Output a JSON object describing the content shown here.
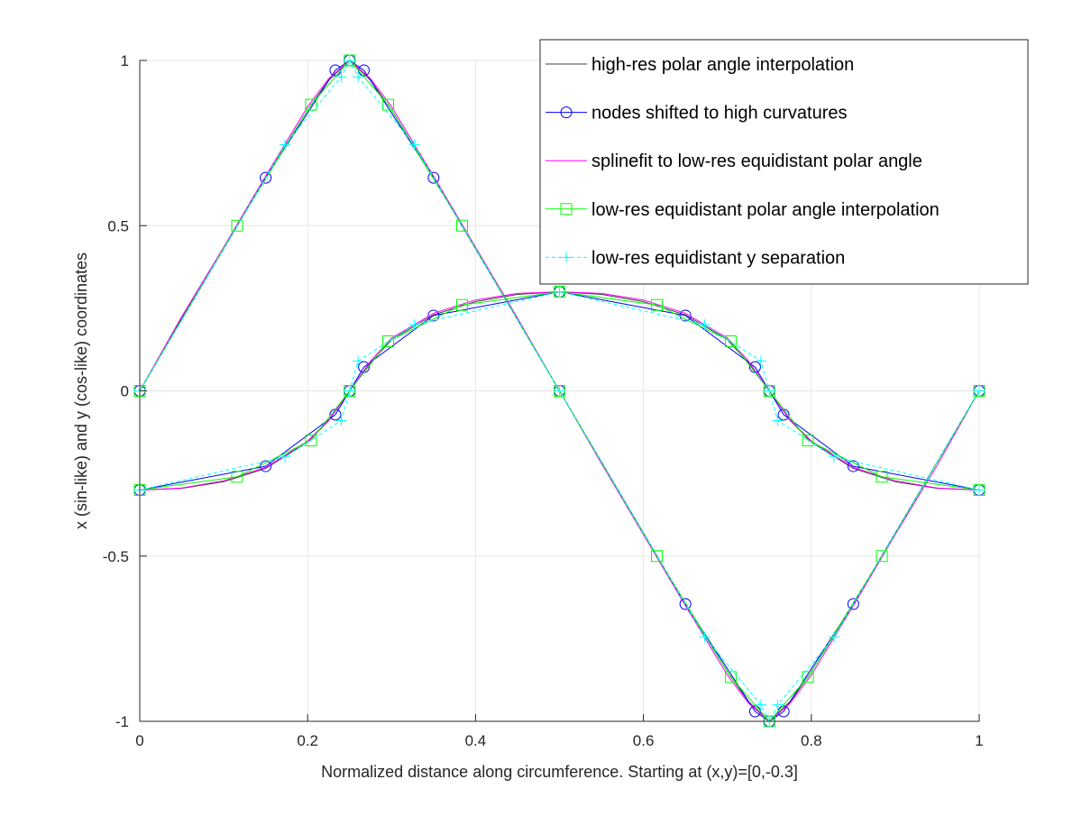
{
  "chart_data": {
    "type": "line",
    "xlabel": "Normalized distance along circumference. Starting at (x,y)=[0,-0.3]",
    "ylabel": "x (sin-like) and y (cos-like) coordinates",
    "xlim": [
      0,
      1
    ],
    "ylim": [
      -1,
      1
    ],
    "xticks": [
      0,
      0.2,
      0.4,
      0.6,
      0.8,
      1
    ],
    "xtick_labels": [
      "0",
      "0.2",
      "0.4",
      "0.6",
      "0.8",
      "1"
    ],
    "yticks": [
      -1,
      -0.5,
      0,
      0.5,
      1
    ],
    "ytick_labels": [
      "-1",
      "-0.5",
      "0",
      "0.5",
      "1"
    ],
    "grid": true,
    "legend_position": "top-right",
    "series": [
      {
        "name": "high-res polar angle interpolation",
        "color": "#404040",
        "marker": "none",
        "line": "solid",
        "groups": [
          {
            "x": [
              0,
              0.05,
              0.1,
              0.15,
              0.2,
              0.225,
              0.25,
              0.275,
              0.3,
              0.35,
              0.4,
              0.45,
              0.5,
              0.55,
              0.6,
              0.65,
              0.7,
              0.725,
              0.75,
              0.775,
              0.8,
              0.85,
              0.9,
              0.95,
              1
            ],
            "y": [
              0,
              0.22,
              0.43,
              0.645,
              0.85,
              0.94,
              1,
              0.94,
              0.85,
              0.645,
              0.43,
              0.215,
              0,
              -0.215,
              -0.43,
              -0.645,
              -0.85,
              -0.94,
              -1,
              -0.94,
              -0.85,
              -0.645,
              -0.43,
              -0.215,
              0
            ]
          },
          {
            "x": [
              0,
              0.05,
              0.1,
              0.15,
              0.2,
              0.225,
              0.25,
              0.275,
              0.3,
              0.35,
              0.4,
              0.45,
              0.5,
              0.55,
              0.6,
              0.65,
              0.7,
              0.725,
              0.75,
              0.775,
              0.8,
              0.85,
              0.9,
              0.95,
              1
            ],
            "y": [
              -0.3,
              -0.295,
              -0.275,
              -0.235,
              -0.155,
              -0.09,
              0,
              0.085,
              0.155,
              0.23,
              0.27,
              0.292,
              0.3,
              0.292,
              0.27,
              0.23,
              0.155,
              0.085,
              0,
              -0.09,
              -0.155,
              -0.235,
              -0.275,
              -0.295,
              -0.3
            ]
          }
        ]
      },
      {
        "name": "nodes shifted to high curvatures",
        "color": "#0000ff",
        "marker": "circle",
        "line": "solid",
        "groups": [
          {
            "x": [
              0,
              0.15,
              0.233,
              0.25,
              0.267,
              0.35,
              0.5,
              0.65,
              0.733,
              0.75,
              0.767,
              0.85,
              1
            ],
            "y": [
              0,
              0.645,
              0.97,
              1,
              0.97,
              0.645,
              0,
              -0.645,
              -0.97,
              -1,
              -0.97,
              -0.645,
              0
            ]
          },
          {
            "x": [
              0,
              0.15,
              0.233,
              0.25,
              0.267,
              0.35,
              0.5,
              0.65,
              0.733,
              0.75,
              0.767,
              0.85,
              1
            ],
            "y": [
              -0.3,
              -0.228,
              -0.072,
              0,
              0.072,
              0.228,
              0.3,
              0.228,
              0.072,
              0,
              -0.072,
              -0.228,
              -0.3
            ]
          }
        ]
      },
      {
        "name": "splinefit to low-res equidistant polar angle",
        "color": "#ff00ff",
        "marker": "none",
        "line": "solid",
        "groups": [
          {
            "x": [
              0,
              0.05,
              0.1,
              0.15,
              0.2,
              0.225,
              0.25,
              0.275,
              0.3,
              0.35,
              0.4,
              0.45,
              0.5,
              0.55,
              0.6,
              0.65,
              0.7,
              0.725,
              0.75,
              0.775,
              0.8,
              0.85,
              0.9,
              0.95,
              1
            ],
            "y": [
              0,
              0.225,
              0.435,
              0.65,
              0.86,
              0.945,
              1,
              0.945,
              0.86,
              0.65,
              0.435,
              0.22,
              0,
              -0.22,
              -0.435,
              -0.65,
              -0.86,
              -0.945,
              -1,
              -0.945,
              -0.86,
              -0.65,
              -0.435,
              -0.225,
              0
            ]
          },
          {
            "x": [
              0,
              0.05,
              0.1,
              0.15,
              0.2,
              0.225,
              0.25,
              0.275,
              0.3,
              0.35,
              0.4,
              0.45,
              0.5,
              0.55,
              0.6,
              0.65,
              0.7,
              0.725,
              0.75,
              0.775,
              0.8,
              0.85,
              0.9,
              0.95,
              1
            ],
            "y": [
              -0.3,
              -0.294,
              -0.272,
              -0.232,
              -0.152,
              -0.088,
              0,
              0.09,
              0.16,
              0.235,
              0.275,
              0.295,
              0.3,
              0.295,
              0.275,
              0.235,
              0.16,
              0.09,
              0,
              -0.088,
              -0.152,
              -0.232,
              -0.272,
              -0.294,
              -0.3
            ]
          }
        ]
      },
      {
        "name": "low-res equidistant polar angle interpolation",
        "color": "#00ff00",
        "marker": "square",
        "line": "solid",
        "groups": [
          {
            "x": [
              0,
              0.116,
              0.204,
              0.25,
              0.296,
              0.384,
              0.5,
              0.616,
              0.704,
              0.75,
              0.796,
              0.884,
              1
            ],
            "y": [
              0,
              0.5,
              0.866,
              1,
              0.866,
              0.5,
              0,
              -0.5,
              -0.866,
              -1,
              -0.866,
              -0.5,
              0
            ]
          },
          {
            "x": [
              0,
              0.116,
              0.204,
              0.25,
              0.296,
              0.384,
              0.5,
              0.616,
              0.704,
              0.75,
              0.796,
              0.884,
              1
            ],
            "y": [
              -0.3,
              -0.26,
              -0.15,
              0,
              0.15,
              0.26,
              0.3,
              0.26,
              0.15,
              0,
              -0.15,
              -0.26,
              -0.3
            ]
          }
        ]
      },
      {
        "name": "low-res equidistant y separation",
        "color": "#00ffff",
        "marker": "plus",
        "line": "dashed",
        "groups": [
          {
            "x": [
              0,
              0.173,
              0.24,
              0.25,
              0.26,
              0.327,
              0.5,
              0.673,
              0.74,
              0.75,
              0.76,
              0.827,
              1
            ],
            "y": [
              0,
              0.745,
              0.95,
              1,
              0.95,
              0.745,
              0,
              -0.745,
              -0.95,
              -1,
              -0.95,
              -0.745,
              0
            ]
          },
          {
            "x": [
              0,
              0.173,
              0.24,
              0.25,
              0.26,
              0.327,
              0.5,
              0.673,
              0.74,
              0.75,
              0.76,
              0.827,
              1
            ],
            "y": [
              -0.3,
              -0.2,
              -0.09,
              0,
              0.09,
              0.2,
              0.3,
              0.2,
              0.09,
              0,
              -0.09,
              -0.2,
              -0.3
            ]
          }
        ]
      }
    ]
  }
}
